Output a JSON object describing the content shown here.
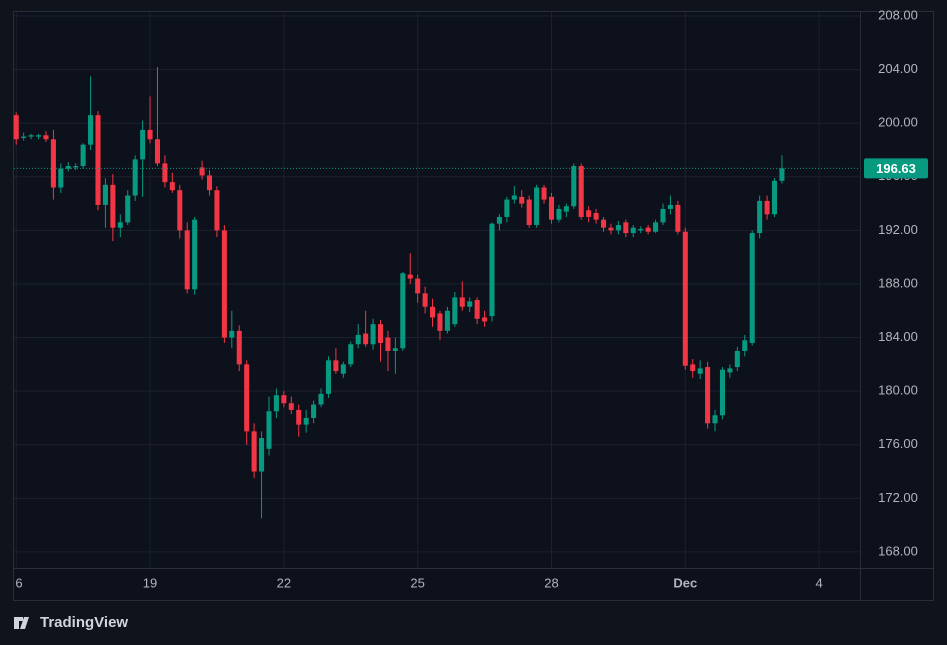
{
  "chart_data": {
    "type": "candlestick",
    "xticks": [
      {
        "value": 0,
        "label": "6"
      },
      {
        "value": 18,
        "label": "19"
      },
      {
        "value": 36,
        "label": "22"
      },
      {
        "value": 54,
        "label": "25"
      },
      {
        "value": 72,
        "label": "28"
      },
      {
        "value": 90,
        "label": "Dec"
      },
      {
        "value": 108,
        "label": "4"
      }
    ],
    "xlim": [
      -0.3,
      113.5
    ],
    "ylim": [
      166.8,
      208.3
    ],
    "yticks": [
      {
        "value": 168,
        "label": "168.00"
      },
      {
        "value": 172,
        "label": "172.00"
      },
      {
        "value": 176,
        "label": "176.00"
      },
      {
        "value": 180,
        "label": "180.00"
      },
      {
        "value": 184,
        "label": "184.00"
      },
      {
        "value": 188,
        "label": "188.00"
      },
      {
        "value": 192,
        "label": "192.00"
      },
      {
        "value": 196,
        "label": "196.00"
      },
      {
        "value": 200,
        "label": "200.00"
      },
      {
        "value": 204,
        "label": "204.00"
      },
      {
        "value": 208,
        "label": "208.00"
      }
    ],
    "grid": true,
    "up_color": "#089981",
    "down_color": "#f23645",
    "last_price": 196.63,
    "open": [
      200.6,
      198.9,
      199.0,
      199.0,
      199.1,
      198.8,
      195.2,
      196.6,
      196.7,
      196.8,
      198.4,
      200.6,
      193.9,
      195.4,
      192.2,
      192.6,
      194.6,
      197.3,
      199.5,
      198.8,
      197.0,
      195.6,
      195.0,
      192.0,
      187.6,
      196.7,
      196.1,
      195.0,
      192.0,
      184.0,
      184.5,
      182.0,
      177.0,
      174.0,
      175.7,
      178.5,
      179.7,
      179.1,
      178.6,
      177.5,
      178.0,
      179.0,
      179.8,
      182.3,
      181.3,
      182.0,
      183.5,
      184.3,
      183.5,
      185.0,
      184.0,
      183.0,
      183.2,
      188.7,
      188.4,
      187.3,
      186.3,
      185.8,
      184.5,
      185.0,
      187.0,
      186.3,
      186.8,
      185.5,
      185.6,
      192.5,
      193.0,
      194.3,
      194.5,
      194.3,
      192.4,
      195.2,
      194.5,
      192.8,
      193.4,
      193.8,
      196.8,
      193.5,
      193.3,
      192.8,
      192.2,
      192.0,
      192.6,
      191.8,
      192.0,
      192.2,
      191.9,
      192.6,
      193.6,
      193.9,
      191.9,
      182.0,
      181.3,
      181.8,
      177.6,
      178.2,
      181.4,
      181.8,
      183.0,
      183.6,
      191.8,
      194.2,
      193.2,
      195.7
    ],
    "high": [
      200.8,
      199.3,
      199.2,
      199.2,
      199.4,
      199.5,
      197.0,
      197.1,
      197.0,
      198.5,
      203.5,
      200.9,
      195.9,
      196.2,
      193.2,
      195.0,
      197.6,
      200.2,
      202.0,
      204.2,
      197.6,
      196.3,
      195.4,
      192.6,
      193.0,
      197.2,
      196.5,
      195.3,
      192.4,
      186.0,
      184.9,
      182.3,
      177.6,
      177.0,
      179.6,
      180.2,
      180.0,
      179.6,
      179.0,
      178.6,
      179.3,
      180.2,
      182.6,
      183.2,
      182.2,
      183.7,
      185.0,
      186.0,
      185.4,
      185.3,
      184.5,
      184.0,
      188.9,
      190.3,
      188.7,
      187.8,
      186.9,
      186.0,
      186.3,
      187.4,
      188.2,
      187.0,
      187.0,
      186.0,
      192.6,
      193.2,
      194.5,
      195.3,
      195.0,
      194.6,
      195.4,
      195.4,
      194.8,
      193.9,
      194.0,
      197.0,
      197.0,
      193.8,
      193.6,
      193.0,
      192.5,
      192.7,
      192.8,
      192.4,
      192.3,
      192.4,
      192.8,
      194.0,
      194.6,
      194.2,
      192.2,
      182.4,
      182.3,
      182.2,
      178.6,
      181.8,
      182.0,
      183.3,
      184.2,
      192.0,
      194.6,
      194.6,
      195.9,
      197.6
    ],
    "low": [
      198.4,
      198.7,
      198.8,
      198.8,
      198.6,
      194.3,
      194.8,
      196.4,
      196.5,
      196.6,
      198.0,
      193.5,
      192.2,
      191.2,
      191.5,
      192.4,
      194.2,
      194.5,
      198.5,
      196.8,
      195.2,
      194.8,
      191.4,
      187.3,
      187.2,
      195.8,
      194.6,
      191.5,
      183.6,
      183.2,
      181.5,
      176.0,
      173.5,
      170.5,
      175.2,
      178.0,
      178.8,
      178.3,
      176.6,
      176.9,
      177.6,
      178.8,
      179.5,
      181.3,
      181.0,
      181.8,
      183.2,
      183.3,
      183.1,
      182.2,
      181.5,
      181.3,
      183.0,
      188.0,
      186.6,
      185.8,
      184.8,
      183.8,
      184.3,
      184.8,
      186.0,
      185.9,
      185.0,
      184.8,
      185.2,
      192.0,
      192.6,
      194.0,
      193.7,
      192.2,
      192.2,
      194.0,
      192.5,
      192.6,
      193.0,
      193.6,
      192.8,
      192.6,
      192.5,
      191.9,
      191.7,
      191.7,
      191.5,
      191.5,
      191.8,
      191.7,
      191.8,
      192.4,
      193.2,
      191.7,
      181.6,
      181.0,
      180.9,
      177.2,
      177.0,
      177.9,
      181.0,
      181.5,
      182.6,
      183.4,
      191.4,
      192.8,
      193.0,
      195.5
    ],
    "close": [
      198.8,
      199.0,
      199.1,
      199.1,
      198.8,
      195.2,
      196.6,
      196.8,
      196.8,
      198.4,
      200.6,
      193.9,
      195.4,
      192.2,
      192.6,
      194.6,
      197.3,
      199.5,
      198.8,
      197.0,
      195.6,
      195.0,
      192.0,
      187.6,
      192.8,
      196.1,
      195.0,
      192.0,
      184.0,
      184.5,
      182.0,
      177.0,
      174.0,
      176.5,
      178.5,
      179.7,
      179.1,
      178.6,
      177.5,
      178.0,
      179.0,
      179.8,
      182.3,
      181.5,
      182.0,
      183.5,
      184.2,
      183.5,
      185.0,
      183.6,
      183.0,
      183.2,
      188.8,
      188.4,
      187.3,
      186.3,
      185.5,
      184.5,
      186.0,
      187.0,
      186.3,
      186.7,
      185.4,
      185.2,
      192.5,
      193.0,
      194.3,
      194.6,
      194.0,
      192.4,
      195.2,
      194.3,
      192.8,
      193.6,
      193.8,
      196.8,
      193.0,
      193.0,
      192.8,
      192.2,
      192.0,
      192.4,
      191.8,
      192.2,
      192.1,
      191.9,
      192.6,
      193.6,
      193.9,
      191.9,
      181.9,
      181.5,
      181.7,
      177.6,
      178.2,
      181.6,
      181.7,
      183.0,
      183.8,
      191.8,
      194.2,
      193.2,
      195.7,
      196.63
    ]
  },
  "footer": {
    "brand": "TradingView"
  }
}
